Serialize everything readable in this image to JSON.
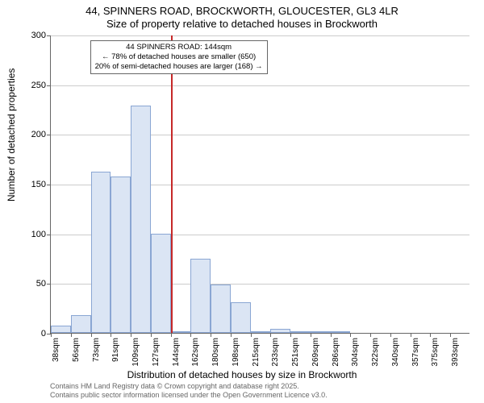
{
  "title": {
    "line1": "44, SPINNERS ROAD, BROCKWORTH, GLOUCESTER, GL3 4LR",
    "line2": "Size of property relative to detached houses in Brockworth"
  },
  "chart": {
    "type": "histogram",
    "ylabel": "Number of detached properties",
    "xlabel": "Distribution of detached houses by size in Brockworth",
    "ylim": [
      0,
      300
    ],
    "ytick_step": 50,
    "grid_color": "#cccccc",
    "axis_color": "#666666",
    "background_color": "#ffffff",
    "bar_fill": "#dbe5f4",
    "bar_border": "#8aa6d3",
    "bar_border_width": 1,
    "title_fontsize": 13,
    "label_fontsize": 12,
    "tick_fontsize": 11,
    "xtick_fontsize": 10,
    "categories": [
      "38sqm",
      "56sqm",
      "73sqm",
      "91sqm",
      "109sqm",
      "127sqm",
      "144sqm",
      "162sqm",
      "180sqm",
      "198sqm",
      "215sqm",
      "233sqm",
      "251sqm",
      "269sqm",
      "286sqm",
      "304sqm",
      "322sqm",
      "340sqm",
      "357sqm",
      "375sqm",
      "393sqm"
    ],
    "values": [
      7,
      18,
      162,
      157,
      229,
      100,
      2,
      75,
      49,
      31,
      2,
      4,
      1,
      1,
      2,
      0,
      0,
      0,
      0,
      0,
      0
    ],
    "vline": {
      "category_index": 6,
      "color": "#c62828"
    },
    "annotation": {
      "line1": "44 SPINNERS ROAD: 144sqm",
      "line2": "← 78% of detached houses are smaller (650)",
      "line3": "20% of semi-detached houses are larger (168) →",
      "border_color": "#666666",
      "background": "#ffffff"
    }
  },
  "footnote": {
    "line1": "Contains HM Land Registry data © Crown copyright and database right 2025.",
    "line2": "Contains public sector information licensed under the Open Government Licence v3.0."
  }
}
